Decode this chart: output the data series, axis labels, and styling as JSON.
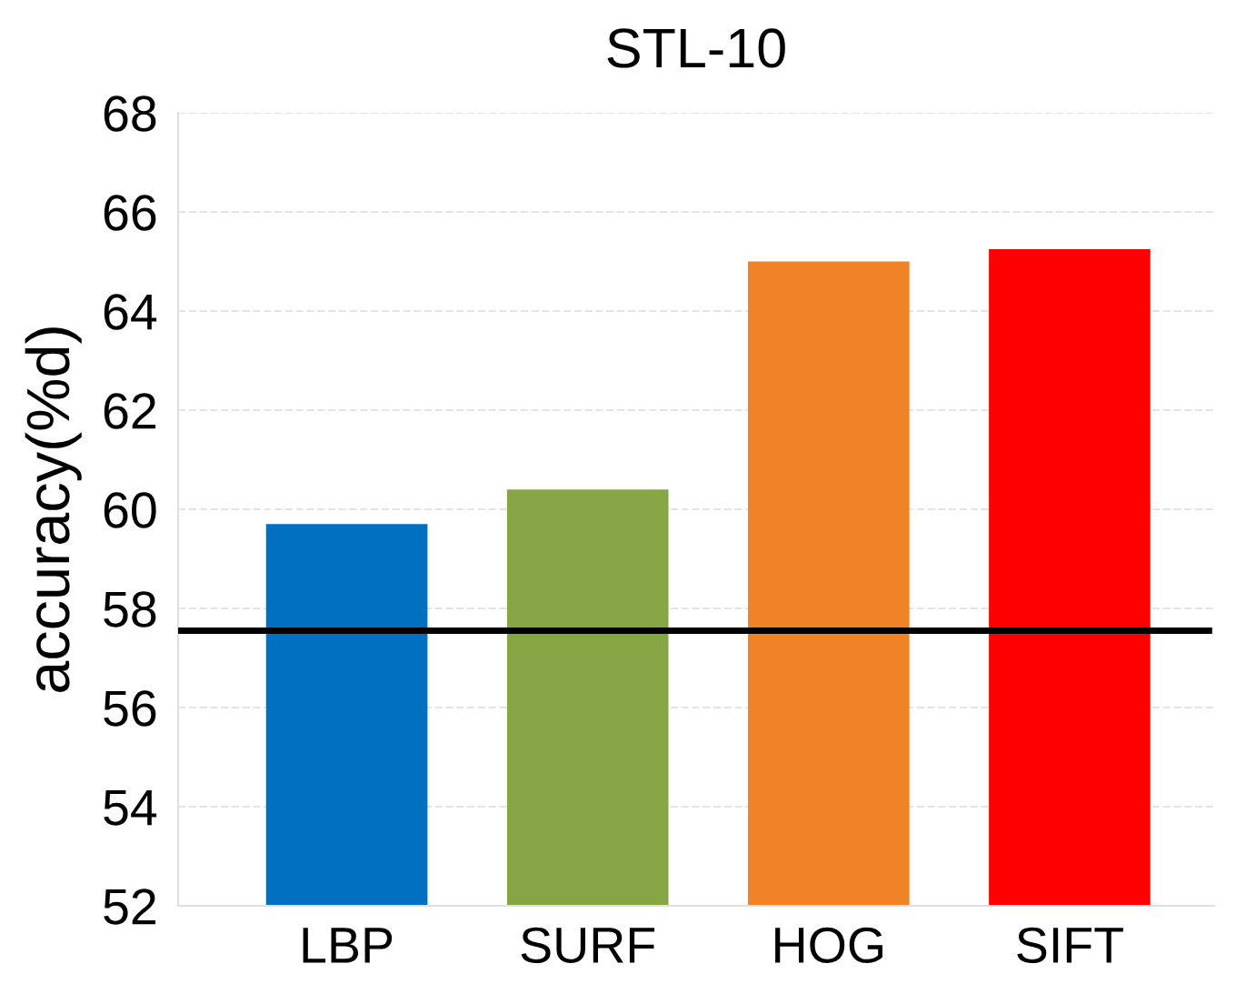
{
  "chart_data": {
    "type": "bar",
    "title": "STL-10",
    "ylabel": "accuracy(%d)",
    "categories": [
      "LBP",
      "SURF",
      "HOG",
      "SIFT"
    ],
    "values": [
      59.7,
      60.4,
      65.0,
      65.25
    ],
    "colors": [
      "#0070c0",
      "#86a545",
      "#f08228",
      "#ff0000"
    ],
    "ylim": [
      52,
      68
    ],
    "yticks": [
      52,
      54,
      56,
      58,
      60,
      62,
      64,
      66,
      68
    ],
    "grid": "y",
    "ref_lines": [
      {
        "axis": "y",
        "value": 57.55,
        "color": "#000000",
        "line_style": "solid"
      }
    ]
  }
}
